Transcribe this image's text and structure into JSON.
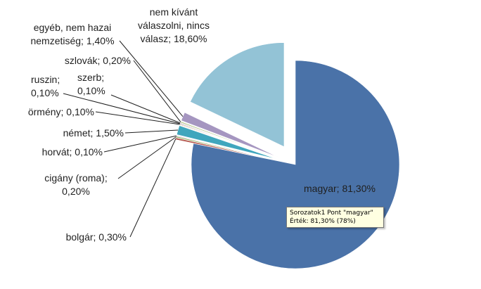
{
  "chart_data": {
    "type": "pie",
    "title": "",
    "exploded": true,
    "slices": [
      {
        "label": "magyar; 81,30%",
        "name": "magyar",
        "value": 81.3,
        "color": "#4a72a8"
      },
      {
        "label": "bolgár; 0,30%",
        "name": "bolgár",
        "value": 0.3,
        "color": "#b4584f"
      },
      {
        "label": "cigány (roma);",
        "label2": "0,20%",
        "name": "cigány (roma)",
        "value": 0.2,
        "color": "#8fab58"
      },
      {
        "label": "horvát; 0,10%",
        "name": "horvát",
        "value": 0.1,
        "color": "#7d63a0"
      },
      {
        "label": "német; 1,50%",
        "name": "német",
        "value": 1.5,
        "color": "#3fa6bd"
      },
      {
        "label": "örmény; 0,10%",
        "name": "örmény",
        "value": 0.1,
        "color": "#e3923f"
      },
      {
        "label": "ruszin;",
        "label2": "0,10%",
        "name": "ruszin",
        "value": 0.1,
        "color": "#6f8cc0"
      },
      {
        "label": "szerb;",
        "label2": "0,10%",
        "name": "szerb",
        "value": 0.1,
        "color": "#c77d79"
      },
      {
        "label": "szlovák; 0,20%",
        "name": "szlovák",
        "value": 0.2,
        "color": "#b6c98f"
      },
      {
        "label": "egyéb, nem hazai",
        "label2": "nemzetiség; 1,40%",
        "name": "egyéb, nem hazai nemzetiség",
        "value": 1.4,
        "color": "#a596c0"
      },
      {
        "label": "nem kívánt",
        "label2": "válaszolni, nincs",
        "label3": "válasz; 18,60%",
        "name": "nem kívánt válaszolni, nincs válasz",
        "value": 18.6,
        "color": "#93c3d6"
      }
    ]
  },
  "tooltip": {
    "line1": "Sorozatok1 Pont \"magyar\"",
    "line2": "Érték: 81,30% (78%)"
  }
}
